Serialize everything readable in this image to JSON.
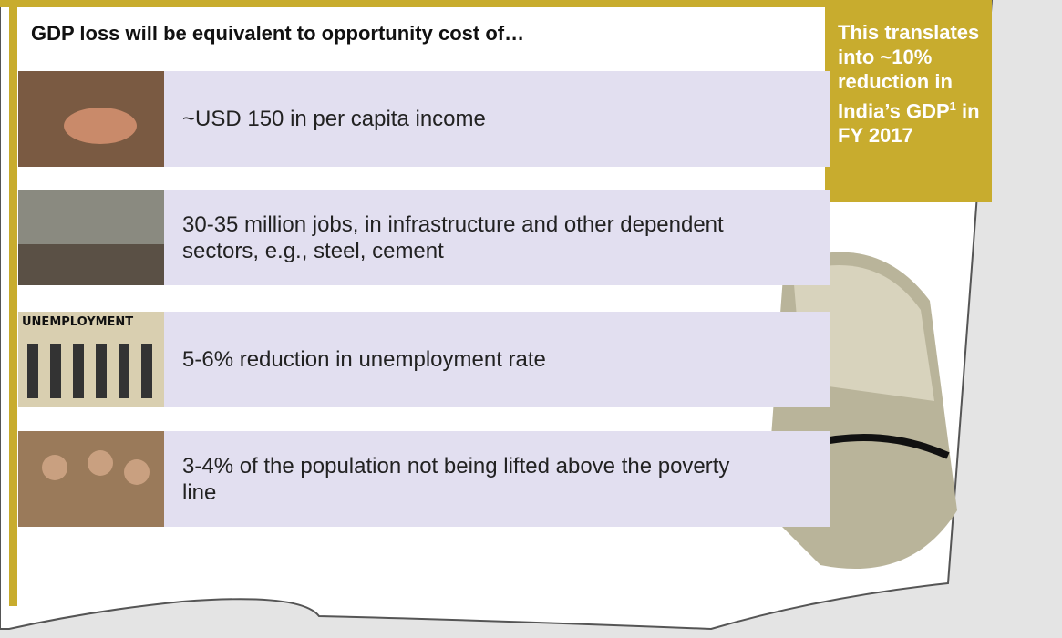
{
  "header": {
    "title": "GDP loss will be equivalent to opportunity cost of…"
  },
  "callout": {
    "text": "This translates into ~10% reduction in India’s GDP",
    "footnote_mark": "1",
    "text_after": "in FY 2017"
  },
  "items": [
    {
      "text": "~USD 150 in per capita income"
    },
    {
      "text": "30-35 million jobs, in infrastructure and other dependent sectors, e.g., steel, cement"
    },
    {
      "text": "5-6% reduction in unemployment rate",
      "image_label": "UNEMPLOYMENT"
    },
    {
      "text": "3-4% of the population not being lifted above the poverty line"
    }
  ]
}
